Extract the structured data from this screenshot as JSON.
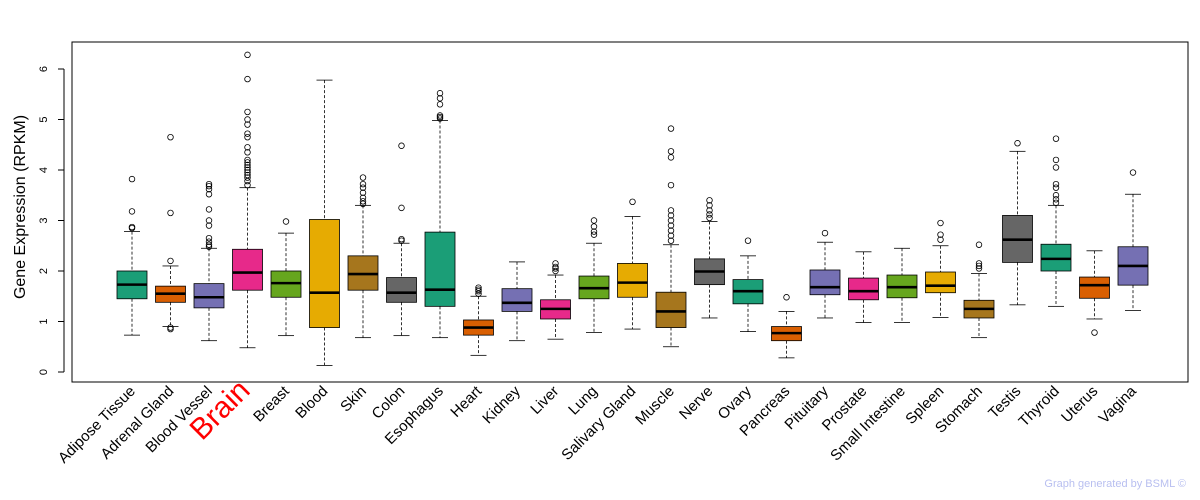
{
  "chart_data": {
    "type": "boxplot",
    "title": "",
    "xlabel": "",
    "ylabel": "Gene Expression (RPKM)",
    "ylim": [
      0,
      6.5
    ],
    "yticks": [
      0,
      1,
      2,
      3,
      4,
      5,
      6
    ],
    "highlight_category": "Brain",
    "highlight_color": "#ff0000",
    "categories": [
      "Adipose Tissue",
      "Adrenal Gland",
      "Blood Vessel",
      "Brain",
      "Breast",
      "Blood",
      "Skin",
      "Colon",
      "Esophagus",
      "Heart",
      "Kidney",
      "Liver",
      "Lung",
      "Salivary Gland",
      "Muscle",
      "Nerve",
      "Ovary",
      "Pancreas",
      "Pituitary",
      "Prostate",
      "Small Intestine",
      "Spleen",
      "Stomach",
      "Testis",
      "Thyroid",
      "Uterus",
      "Vagina"
    ],
    "colors": [
      "#1b9e77",
      "#d95f02",
      "#7570b3",
      "#e7298a",
      "#66a61e",
      "#e6ab02",
      "#a6761d",
      "#666666",
      "#1b9e77",
      "#d95f02",
      "#7570b3",
      "#e7298a",
      "#66a61e",
      "#e6ab02",
      "#a6761d",
      "#666666",
      "#1b9e77",
      "#d95f02",
      "#7570b3",
      "#e7298a",
      "#66a61e",
      "#e6ab02",
      "#a6761d",
      "#666666",
      "#1b9e77",
      "#d95f02",
      "#7570b3"
    ],
    "series": [
      {
        "name": "Adipose Tissue",
        "whisker_low": 0.73,
        "q1": 1.45,
        "median": 1.73,
        "q3": 2.0,
        "whisker_high": 2.78,
        "outliers": [
          2.85,
          2.87,
          3.18,
          3.82
        ]
      },
      {
        "name": "Adrenal Gland",
        "whisker_low": 0.9,
        "q1": 1.38,
        "median": 1.55,
        "q3": 1.7,
        "whisker_high": 2.1,
        "outliers": [
          0.85,
          0.88,
          2.2,
          3.15,
          4.65
        ]
      },
      {
        "name": "Blood Vessel",
        "whisker_low": 0.62,
        "q1": 1.27,
        "median": 1.48,
        "q3": 1.75,
        "whisker_high": 2.45,
        "outliers": [
          2.48,
          2.52,
          2.58,
          2.65,
          2.9,
          3.0,
          3.22,
          3.52,
          3.62,
          3.68,
          3.72
        ]
      },
      {
        "name": "Brain",
        "whisker_low": 0.48,
        "q1": 1.62,
        "median": 1.97,
        "q3": 2.43,
        "whisker_high": 3.65,
        "outliers": [
          3.7,
          3.78,
          3.85,
          3.9,
          3.95,
          4.0,
          4.05,
          4.1,
          4.15,
          4.2,
          4.35,
          4.45,
          4.65,
          4.72,
          4.9,
          5.0,
          5.15,
          5.8,
          6.28
        ]
      },
      {
        "name": "Breast",
        "whisker_low": 0.72,
        "q1": 1.48,
        "median": 1.76,
        "q3": 2.0,
        "whisker_high": 2.75,
        "outliers": [
          2.98
        ]
      },
      {
        "name": "Blood",
        "whisker_low": 0.13,
        "q1": 0.88,
        "median": 1.57,
        "q3": 3.02,
        "whisker_high": 5.78,
        "outliers": []
      },
      {
        "name": "Skin",
        "whisker_low": 0.68,
        "q1": 1.62,
        "median": 1.94,
        "q3": 2.3,
        "whisker_high": 3.3,
        "outliers": [
          3.33,
          3.38,
          3.45,
          3.55,
          3.65,
          3.72,
          3.85
        ]
      },
      {
        "name": "Colon",
        "whisker_low": 0.72,
        "q1": 1.38,
        "median": 1.57,
        "q3": 1.87,
        "whisker_high": 2.55,
        "outliers": [
          2.6,
          2.63,
          3.25,
          4.48
        ]
      },
      {
        "name": "Esophagus",
        "whisker_low": 0.68,
        "q1": 1.3,
        "median": 1.63,
        "q3": 2.77,
        "whisker_high": 4.98,
        "outliers": [
          5.02,
          5.05,
          5.08,
          5.3,
          5.42,
          5.52
        ]
      },
      {
        "name": "Heart",
        "whisker_low": 0.33,
        "q1": 0.73,
        "median": 0.88,
        "q3": 1.03,
        "whisker_high": 1.5,
        "outliers": [
          1.55,
          1.6,
          1.63,
          1.67
        ]
      },
      {
        "name": "Kidney",
        "whisker_low": 0.62,
        "q1": 1.2,
        "median": 1.37,
        "q3": 1.65,
        "whisker_high": 2.18,
        "outliers": []
      },
      {
        "name": "Liver",
        "whisker_low": 0.65,
        "q1": 1.05,
        "median": 1.25,
        "q3": 1.43,
        "whisker_high": 1.92,
        "outliers": [
          2.0,
          2.05,
          2.08,
          2.15
        ]
      },
      {
        "name": "Lung",
        "whisker_low": 0.78,
        "q1": 1.45,
        "median": 1.66,
        "q3": 1.9,
        "whisker_high": 2.55,
        "outliers": [
          2.72,
          2.78,
          2.88,
          3.0
        ]
      },
      {
        "name": "Salivary Gland",
        "whisker_low": 0.85,
        "q1": 1.48,
        "median": 1.77,
        "q3": 2.15,
        "whisker_high": 3.08,
        "outliers": [
          3.37
        ]
      },
      {
        "name": "Muscle",
        "whisker_low": 0.5,
        "q1": 0.88,
        "median": 1.2,
        "q3": 1.58,
        "whisker_high": 2.52,
        "outliers": [
          2.6,
          2.7,
          2.8,
          2.9,
          3.0,
          3.1,
          3.2,
          3.7,
          4.25,
          4.37,
          4.82
        ]
      },
      {
        "name": "Nerve",
        "whisker_low": 1.07,
        "q1": 1.73,
        "median": 1.99,
        "q3": 2.24,
        "whisker_high": 2.98,
        "outliers": [
          3.05,
          3.12,
          3.2,
          3.3,
          3.4
        ]
      },
      {
        "name": "Ovary",
        "whisker_low": 0.8,
        "q1": 1.35,
        "median": 1.6,
        "q3": 1.83,
        "whisker_high": 2.3,
        "outliers": [
          2.6
        ]
      },
      {
        "name": "Pancreas",
        "whisker_low": 0.28,
        "q1": 0.62,
        "median": 0.77,
        "q3": 0.9,
        "whisker_high": 1.2,
        "outliers": [
          1.48
        ]
      },
      {
        "name": "Pituitary",
        "whisker_low": 1.07,
        "q1": 1.53,
        "median": 1.68,
        "q3": 2.02,
        "whisker_high": 2.57,
        "outliers": [
          2.75
        ]
      },
      {
        "name": "Prostate",
        "whisker_low": 0.98,
        "q1": 1.43,
        "median": 1.6,
        "q3": 1.86,
        "whisker_high": 2.38,
        "outliers": []
      },
      {
        "name": "Small Intestine",
        "whisker_low": 0.98,
        "q1": 1.47,
        "median": 1.68,
        "q3": 1.92,
        "whisker_high": 2.45,
        "outliers": []
      },
      {
        "name": "Spleen",
        "whisker_low": 1.08,
        "q1": 1.57,
        "median": 1.71,
        "q3": 1.98,
        "whisker_high": 2.5,
        "outliers": [
          2.62,
          2.72,
          2.95
        ]
      },
      {
        "name": "Stomach",
        "whisker_low": 0.68,
        "q1": 1.07,
        "median": 1.25,
        "q3": 1.42,
        "whisker_high": 1.95,
        "outliers": [
          2.05,
          2.1,
          2.15,
          2.52
        ]
      },
      {
        "name": "Testis",
        "whisker_low": 1.33,
        "q1": 2.17,
        "median": 2.62,
        "q3": 3.1,
        "whisker_high": 4.37,
        "outliers": [
          4.53
        ]
      },
      {
        "name": "Thyroid",
        "whisker_low": 1.3,
        "q1": 2.0,
        "median": 2.24,
        "q3": 2.53,
        "whisker_high": 3.3,
        "outliers": [
          3.35,
          3.42,
          3.5,
          3.65,
          3.72,
          4.05,
          4.2,
          4.62
        ]
      },
      {
        "name": "Uterus",
        "whisker_low": 1.05,
        "q1": 1.46,
        "median": 1.72,
        "q3": 1.88,
        "whisker_high": 2.4,
        "outliers": [
          0.78
        ]
      },
      {
        "name": "Vagina",
        "whisker_low": 1.22,
        "q1": 1.72,
        "median": 2.1,
        "q3": 2.48,
        "whisker_high": 3.52,
        "outliers": [
          3.95
        ]
      }
    ]
  },
  "credit": "Graph generated by BSML ©"
}
